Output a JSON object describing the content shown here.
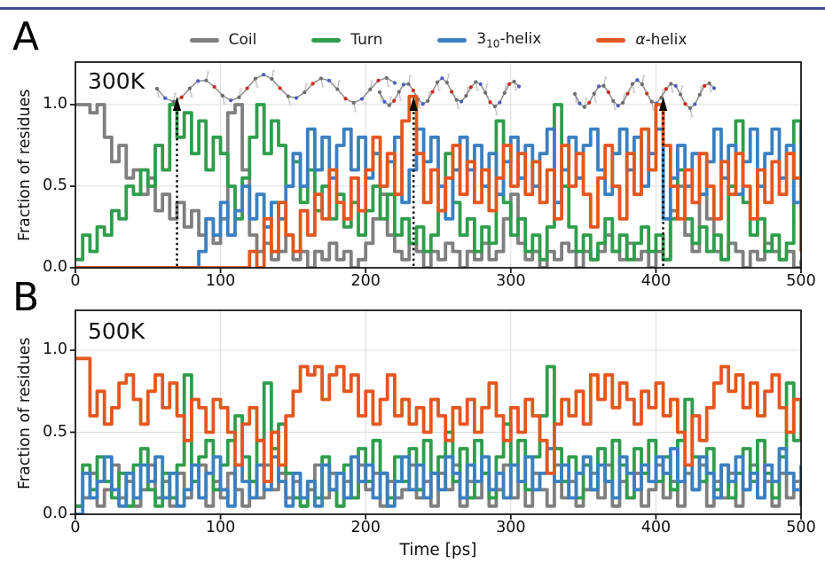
{
  "figure": {
    "top_rule_color": "#3d4c98",
    "frame_color": "#1a1a1a",
    "grid_color": "#dcdcdc",
    "arrow_color": "#000000"
  },
  "legend": {
    "items": [
      {
        "key": "coil",
        "label": "Coil",
        "color": "#7f7f7f"
      },
      {
        "key": "turn",
        "label": "Turn",
        "color": "#2f9e4c"
      },
      {
        "key": "helix310",
        "label_base": "3",
        "label_sub": "10",
        "label_rest": "-helix",
        "color": "#3a80c1"
      },
      {
        "key": "alpha",
        "label_symbol": "α",
        "label_rest": "-helix",
        "color": "#e3571e"
      }
    ]
  },
  "chart_data": [
    {
      "id": "panel_a",
      "type": "line",
      "panel_label": "A",
      "annotation": "300K",
      "ylabel": "Fraction of residues",
      "xlim": [
        0,
        500
      ],
      "ylim": [
        0,
        1.26
      ],
      "x_start": 0,
      "x_step": 5,
      "x_ticks": [
        0,
        100,
        200,
        300,
        400,
        500
      ],
      "x_tick_labels": [
        "0",
        "100",
        "200",
        "300",
        "400",
        "500"
      ],
      "y_ticks": [
        0,
        0.5,
        1.0
      ],
      "y_tick_labels": [
        "0.0",
        "0.5",
        "1.0"
      ],
      "grid": true,
      "snapshot_arrows_t": [
        70,
        233,
        405
      ],
      "molecules": [
        {
          "name": "molecule-extended-coil-structure",
          "type": "extended"
        },
        {
          "name": "molecule-partially-folded-structure",
          "type": "partial"
        },
        {
          "name": "molecule-alpha-helix-structure",
          "type": "helix"
        }
      ],
      "series": [
        {
          "key": "coil",
          "name": "Coil",
          "color": "#7f7f7f",
          "values": [
            1,
            1,
            0.95,
            1,
            0.8,
            0.65,
            0.75,
            0.55,
            0.6,
            0.45,
            0.55,
            0.35,
            0.45,
            0.3,
            0.4,
            0.25,
            0.35,
            0.2,
            0.3,
            0.15,
            0.3,
            0.95,
            1,
            0.6,
            0.2,
            0.1,
            0.15,
            0.05,
            0.1,
            0.2,
            0.05,
            0.1,
            0,
            0.1,
            0.05,
            0.15,
            0.05,
            0.1,
            0,
            0.05,
            0.15,
            0.3,
            0.45,
            0.2,
            0.1,
            0.05,
            0.15,
            0.1,
            0,
            0.1,
            0.05,
            0.15,
            0.1,
            0,
            0.1,
            0.05,
            0.15,
            0.05,
            0.1,
            0.3,
            0.45,
            0.15,
            0.05,
            0.1,
            0,
            0.1,
            0.05,
            0.15,
            0.1,
            0,
            0.1,
            0.05,
            0.1,
            0.2,
            0.1,
            0.05,
            0.15,
            0.05,
            0.1,
            0,
            0.1,
            0.05,
            0.35,
            0.5,
            0.2,
            0.1,
            0.45,
            0.3,
            0.1,
            0.05,
            0.15,
            0.1,
            0,
            0.1,
            0.05,
            0.15,
            0.1,
            0.05,
            0.1,
            0,
            0.05
          ]
        },
        {
          "key": "turn",
          "name": "Turn",
          "color": "#2f9e4c",
          "values": [
            0.05,
            0.2,
            0.1,
            0.25,
            0.2,
            0.35,
            0.3,
            0.5,
            0.45,
            0.6,
            0.5,
            0.75,
            0.6,
            1,
            0.8,
            0.95,
            0.7,
            0.9,
            0.6,
            0.8,
            0.7,
            0.5,
            0.3,
            0.55,
            0.8,
            1,
            0.7,
            0.9,
            0.75,
            0.5,
            0.65,
            0.4,
            0.6,
            0.35,
            0.5,
            0.3,
            0.45,
            0.25,
            0.4,
            0.2,
            0.35,
            0.5,
            0.3,
            0.45,
            0.2,
            0.3,
            0.15,
            0.25,
            0.1,
            0.2,
            0.35,
            0.7,
            0.4,
            0.2,
            0.3,
            0.1,
            0.25,
            0.15,
            0.9,
            0.4,
            0.2,
            0.3,
            0.1,
            0.2,
            0.05,
            0.25,
            1,
            0.5,
            0.25,
            0.1,
            0.2,
            0.05,
            0.15,
            0.3,
            0.1,
            0.2,
            0.05,
            0.15,
            0.25,
            0.1,
            0.2,
            0.05,
            0.3,
            0.6,
            0.3,
            0.15,
            0.25,
            0.1,
            0.2,
            0.05,
            0.5,
            0.9,
            0.4,
            0.2,
            0.3,
            0.1,
            0.2,
            0.05,
            0.15,
            0.9,
            0.3
          ]
        },
        {
          "key": "helix310",
          "name": "3₁₀-helix",
          "color": "#3a80c1",
          "values": [
            0,
            0,
            0,
            0,
            0,
            0,
            0,
            0,
            0,
            0,
            0,
            0,
            0,
            0,
            0,
            0,
            0,
            0.1,
            0.3,
            0.2,
            0.4,
            0.2,
            0.35,
            0.5,
            0.3,
            0.45,
            0.25,
            0.4,
            0.3,
            0.5,
            0.7,
            0.5,
            0.85,
            0.6,
            0.8,
            0.55,
            0.75,
            0.85,
            0.6,
            0.8,
            0.55,
            0.7,
            0.5,
            0.65,
            0.8,
            0.4,
            0.6,
            0.85,
            0.65,
            0.8,
            0.5,
            0.3,
            0.6,
            0.8,
            0.6,
            0.75,
            0.5,
            0.7,
            0.45,
            0.65,
            0.8,
            0.55,
            0.75,
            0.5,
            0.7,
            0.85,
            0.4,
            0.6,
            0.8,
            0.55,
            0.75,
            0.85,
            0.6,
            0.45,
            0.7,
            0.85,
            0.6,
            0.8,
            0.5,
            0.7,
            0.85,
            0.3,
            0.55,
            0.75,
            0.5,
            0.7,
            0.45,
            0.65,
            0.85,
            0.55,
            0.75,
            0.45,
            0.65,
            0.85,
            0.5,
            0.7,
            0.85,
            0.55,
            0.75,
            0.4,
            0.85
          ]
        },
        {
          "key": "alpha",
          "name": "α-helix",
          "color": "#e3571e",
          "values": [
            0,
            0,
            0,
            0,
            0,
            0,
            0,
            0,
            0,
            0,
            0,
            0,
            0,
            0,
            0,
            0,
            0,
            0,
            0,
            0,
            0,
            0,
            0,
            0,
            0.1,
            0,
            0.3,
            0.1,
            0.4,
            0.2,
            0.1,
            0.35,
            0.2,
            0.45,
            0.3,
            0.6,
            0.4,
            0.3,
            0.55,
            0.35,
            0.6,
            0.8,
            0.5,
            0.7,
            0.45,
            0.9,
            1.05,
            0.7,
            0.4,
            0.6,
            0.35,
            0.55,
            0.75,
            0.45,
            0.65,
            0.4,
            0.6,
            0.35,
            0.55,
            0.75,
            0.5,
            0.7,
            0.45,
            0.65,
            0.4,
            0.6,
            0.3,
            0.75,
            0.5,
            0.7,
            0.45,
            0.25,
            0.55,
            0.75,
            0.5,
            0.3,
            0.7,
            0.45,
            0.85,
            0.6,
            1,
            0.75,
            0.5,
            0.3,
            0.6,
            0.4,
            0.7,
            0.5,
            0.3,
            0.65,
            0.45,
            0.7,
            0.5,
            0.3,
            0.6,
            0.4,
            0.65,
            0.45,
            0.7,
            0.55,
            0.1
          ]
        }
      ]
    },
    {
      "id": "panel_b",
      "type": "line",
      "panel_label": "B",
      "annotation": "500K",
      "ylabel": "Fraction of residues",
      "xlabel": "Time [ps]",
      "xlim": [
        0,
        500
      ],
      "ylim": [
        0,
        1.24
      ],
      "x_start": 0,
      "x_step": 5,
      "x_ticks": [
        0,
        100,
        200,
        300,
        400,
        500
      ],
      "x_tick_labels": [
        "0",
        "100",
        "200",
        "300",
        "400",
        "500"
      ],
      "y_ticks": [
        0,
        0.5,
        1.0
      ],
      "y_tick_labels": [
        "0.0",
        "0.5",
        "1.0"
      ],
      "grid": true,
      "series": [
        {
          "key": "coil",
          "name": "Coil",
          "color": "#7f7f7f",
          "values": [
            0.05,
            0.1,
            0.25,
            0.05,
            0.15,
            0.3,
            0.1,
            0.2,
            0.05,
            0.15,
            0.3,
            0.1,
            0.2,
            0.05,
            0.25,
            0.1,
            0.2,
            0.3,
            0.05,
            0.2,
            0.1,
            0.25,
            0.15,
            0.05,
            0.2,
            0.1,
            0.3,
            0.15,
            0.25,
            0.1,
            0.2,
            0.05,
            0.15,
            0.3,
            0.1,
            0.25,
            0.05,
            0.2,
            0.1,
            0.3,
            0.15,
            0.25,
            0.05,
            0.2,
            0.1,
            0.15,
            0.3,
            0.1,
            0.2,
            0.05,
            0.25,
            0.15,
            0.3,
            0.05,
            0.2,
            0.1,
            0.25,
            0.05,
            0.15,
            0.3,
            0.1,
            0.2,
            0.05,
            0.25,
            0.15,
            0.05,
            0.3,
            0.1,
            0.2,
            0.05,
            0.15,
            0.25,
            0.1,
            0.3,
            0.05,
            0.2,
            0.1,
            0.25,
            0.05,
            0.15,
            0.3,
            0.1,
            0.2,
            0.05,
            0.25,
            0.15,
            0.3,
            0.05,
            0.2,
            0.1,
            0.25,
            0.05,
            0.15,
            0.3,
            0.1,
            0.2,
            0.05,
            0.25,
            0.1,
            0.2,
            0.05
          ]
        },
        {
          "key": "turn",
          "name": "Turn",
          "color": "#2f9e4c",
          "values": [
            0.05,
            0.3,
            0.15,
            0.35,
            0.2,
            0.1,
            0.25,
            0.05,
            0.3,
            0.4,
            0.15,
            0.05,
            0.25,
            0.1,
            0.3,
            0.85,
            0.2,
            0.35,
            0.45,
            0.15,
            0.3,
            0.45,
            0.6,
            0.35,
            0.2,
            0.45,
            0.8,
            0.4,
            0.55,
            0.25,
            0.1,
            0.05,
            0.2,
            0.1,
            0.35,
            0.15,
            0.05,
            0.3,
            0.1,
            0.4,
            0.2,
            0.45,
            0.25,
            0.1,
            0.35,
            0.2,
            0.4,
            0.15,
            0.45,
            0.25,
            0.35,
            0.5,
            0.2,
            0.4,
            0.1,
            0.45,
            0.25,
            0.1,
            0.35,
            0.55,
            0.3,
            0.45,
            0.15,
            0.35,
            0.6,
            0.9,
            0.4,
            0.2,
            0.35,
            0.1,
            0.3,
            0.15,
            0.4,
            0.2,
            0.45,
            0.3,
            0.1,
            0.4,
            0.25,
            0.45,
            0.2,
            0.35,
            0.15,
            0.45,
            0.7,
            0.35,
            0.2,
            0.4,
            0.15,
            0.3,
            0.1,
            0.25,
            0.4,
            0.2,
            0.45,
            0.25,
            0.1,
            0.35,
            0.8,
            0.45,
            0.55
          ]
        },
        {
          "key": "helix310",
          "name": "3₁₀-helix",
          "color": "#3a80c1",
          "values": [
            0,
            0.25,
            0.1,
            0.2,
            0.35,
            0.15,
            0.05,
            0.25,
            0.1,
            0.3,
            0.2,
            0.35,
            0.1,
            0.25,
            0.05,
            0.15,
            0.3,
            0.1,
            0.25,
            0.35,
            0.15,
            0.05,
            0.3,
            0.2,
            0.1,
            0.3,
            0.15,
            0.35,
            0.2,
            0.05,
            0.25,
            0.1,
            0.2,
            0.05,
            0.3,
            0.15,
            0.25,
            0.1,
            0.35,
            0.2,
            0.3,
            0.1,
            0.25,
            0.05,
            0.2,
            0.35,
            0.15,
            0.3,
            0.1,
            0.25,
            0.15,
            0.35,
            0.25,
            0.1,
            0.3,
            0.2,
            0.35,
            0.15,
            0.25,
            0.1,
            0.3,
            0.2,
            0.35,
            0.15,
            0.25,
            0.4,
            0.2,
            0.3,
            0.1,
            0.25,
            0.35,
            0.15,
            0.3,
            0.2,
            0.1,
            0.35,
            0.25,
            0.15,
            0.3,
            0.2,
            0.35,
            0.25,
            0.4,
            0.2,
            0.3,
            0.15,
            0.35,
            0.25,
            0.1,
            0.3,
            0.2,
            0.35,
            0.15,
            0.25,
            0.1,
            0.3,
            0.2,
            0.4,
            0.25,
            0.15,
            0.3
          ]
        },
        {
          "key": "alpha",
          "name": "α-helix",
          "color": "#e3571e",
          "values": [
            0.95,
            0.95,
            0.6,
            0.75,
            0.55,
            0.65,
            0.8,
            0.85,
            0.7,
            0.55,
            0.75,
            0.85,
            0.65,
            0.8,
            0.6,
            0.45,
            0.7,
            0.65,
            0.5,
            0.7,
            0.65,
            0.5,
            0.3,
            0.55,
            0.65,
            0.45,
            0.2,
            0.5,
            0.3,
            0.6,
            0.75,
            0.9,
            0.85,
            0.9,
            0.7,
            0.85,
            0.9,
            0.75,
            0.85,
            0.6,
            0.75,
            0.55,
            0.7,
            0.85,
            0.6,
            0.7,
            0.55,
            0.65,
            0.5,
            0.7,
            0.6,
            0.45,
            0.65,
            0.55,
            0.7,
            0.5,
            0.65,
            0.8,
            0.6,
            0.45,
            0.65,
            0.5,
            0.7,
            0.6,
            0.45,
            0.25,
            0.55,
            0.7,
            0.6,
            0.75,
            0.55,
            0.85,
            0.7,
            0.85,
            0.65,
            0.8,
            0.7,
            0.55,
            0.75,
            0.65,
            0.8,
            0.6,
            0.7,
            0.5,
            0.3,
            0.6,
            0.45,
            0.65,
            0.8,
            0.9,
            0.75,
            0.85,
            0.65,
            0.8,
            0.6,
            0.75,
            0.85,
            0.65,
            0.5,
            0.7,
            0.45
          ]
        }
      ]
    }
  ]
}
